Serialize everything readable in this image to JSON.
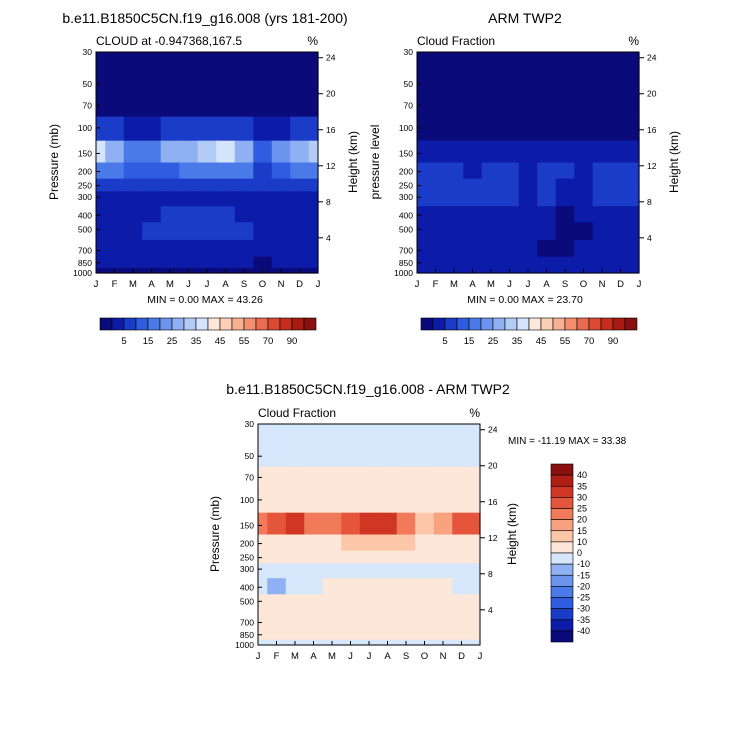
{
  "colors": {
    "diverging": [
      "#0a0a7a",
      "#0c1ca8",
      "#1a3cc8",
      "#2f5ce0",
      "#4a7ae8",
      "#6c94ee",
      "#8fb0f2",
      "#b2ccf6",
      "#d4e4fb",
      "#fde7d8",
      "#fccfb6",
      "#f8b092",
      "#f38e6e",
      "#ea6b4f",
      "#dc4a33",
      "#c72d1e",
      "#a91a12",
      "#8a1010"
    ],
    "page_background": "#ffffff"
  },
  "months": [
    "J",
    "F",
    "M",
    "A",
    "M",
    "J",
    "J",
    "A",
    "S",
    "O",
    "N",
    "D",
    "J"
  ],
  "pressure_ticks": [
    "30",
    "50",
    "70",
    "100",
    "150",
    "200",
    "250",
    "300",
    "400",
    "500",
    "700",
    "850",
    "1000"
  ],
  "height_ticks": [
    "24",
    "20",
    "16",
    "12",
    "8",
    "4"
  ],
  "panel1": {
    "title": "b.e11.B1850C5CN.f19_g16.008 (yrs 181-200)",
    "subtitle_left": "CLOUD at -0.947368,167.5",
    "subtitle_right": "%",
    "ylabel_left": "Pressure (mb)",
    "ylabel_right": "Height (km)",
    "stats": "MIN =   0.00 MAX =  43.26",
    "colorbar_labels": [
      "5",
      "15",
      "25",
      "35",
      "45",
      "55",
      "70",
      "90"
    ]
  },
  "panel2": {
    "title": "ARM TWP2",
    "subtitle_left": "Cloud Fraction",
    "subtitle_right": "%",
    "ylabel_left": "pressure level",
    "ylabel_right": "Height (km)",
    "stats": "MIN =   0.00 MAX =  23.70",
    "colorbar_labels": [
      "5",
      "15",
      "25",
      "35",
      "45",
      "55",
      "70",
      "90"
    ]
  },
  "panel3": {
    "title": "b.e11.B1850C5CN.f19_g16.008 - ARM TWP2",
    "subtitle_left": "Cloud Fraction",
    "subtitle_right": "%",
    "ylabel_left": "Pressure (mb)",
    "ylabel_right": "Height (km)",
    "stats": "MIN = -11.19 MAX =  33.38",
    "colorbar_labels": [
      "40",
      "35",
      "30",
      "25",
      "20",
      "15",
      "10",
      "0",
      "-10",
      "-15",
      "-20",
      "-25",
      "-30",
      "-35",
      "-40"
    ]
  },
  "chart_data": [
    {
      "type": "heatmap",
      "title": "b.e11.B1850C5CN.f19_g16.008 (yrs 181-200)",
      "subtitle": "CLOUD at -0.947368,167.5",
      "units": "%",
      "xlabel": "",
      "ylabel": "Pressure (mb)",
      "ylabel_right": "Height (km)",
      "x": [
        "J",
        "F",
        "M",
        "A",
        "M",
        "J",
        "J",
        "A",
        "S",
        "O",
        "N",
        "D",
        "J"
      ],
      "y": [
        30,
        50,
        70,
        100,
        150,
        200,
        250,
        300,
        400,
        500,
        700,
        850,
        1000
      ],
      "min": 0.0,
      "max": 43.26,
      "values": [
        [
          2,
          2,
          2,
          2,
          2,
          2,
          2,
          2,
          2,
          2,
          2,
          2,
          2
        ],
        [
          2,
          2,
          2,
          2,
          2,
          2,
          2,
          2,
          2,
          2,
          2,
          2,
          2
        ],
        [
          4,
          3,
          3,
          3,
          3,
          3,
          3,
          3,
          3,
          3,
          3,
          3,
          4
        ],
        [
          12,
          10,
          9,
          9,
          10,
          11,
          12,
          12,
          11,
          8,
          9,
          11,
          13
        ],
        [
          40,
          30,
          22,
          24,
          30,
          34,
          36,
          42,
          32,
          18,
          26,
          32,
          36
        ],
        [
          22,
          20,
          18,
          16,
          18,
          20,
          22,
          24,
          20,
          14,
          16,
          20,
          22
        ],
        [
          12,
          11,
          10,
          10,
          11,
          12,
          12,
          13,
          12,
          10,
          10,
          12,
          12
        ],
        [
          9,
          9,
          9,
          9,
          9,
          9,
          9,
          9,
          9,
          9,
          9,
          9,
          9
        ],
        [
          5,
          8,
          6,
          9,
          10,
          10,
          10,
          10,
          9,
          9,
          9,
          9,
          6
        ],
        [
          8,
          9,
          9,
          11,
          12,
          12,
          12,
          11,
          10,
          9,
          9,
          9,
          8
        ],
        [
          7,
          7,
          7,
          7,
          8,
          8,
          7,
          7,
          7,
          5,
          7,
          7,
          7
        ],
        [
          5,
          5,
          5,
          5,
          5,
          5,
          5,
          5,
          5,
          3,
          5,
          5,
          5
        ],
        [
          3,
          3,
          3,
          3,
          3,
          3,
          3,
          3,
          3,
          3,
          3,
          3,
          3
        ]
      ]
    },
    {
      "type": "heatmap",
      "title": "ARM TWP2",
      "subtitle": "Cloud Fraction",
      "units": "%",
      "xlabel": "",
      "ylabel": "pressure level",
      "ylabel_right": "Height (km)",
      "x": [
        "J",
        "F",
        "M",
        "A",
        "M",
        "J",
        "J",
        "A",
        "S",
        "O",
        "N",
        "D",
        "J"
      ],
      "y": [
        30,
        50,
        70,
        100,
        150,
        200,
        250,
        300,
        400,
        500,
        700,
        850,
        1000
      ],
      "min": 0.0,
      "max": 23.7,
      "values": [
        [
          1,
          1,
          1,
          1,
          1,
          1,
          1,
          1,
          1,
          1,
          1,
          1,
          1
        ],
        [
          1,
          1,
          1,
          1,
          1,
          1,
          1,
          1,
          1,
          1,
          1,
          1,
          1
        ],
        [
          1,
          1,
          1,
          1,
          1,
          1,
          1,
          1,
          1,
          1,
          1,
          1,
          1
        ],
        [
          3,
          3,
          2,
          2,
          2,
          2,
          2,
          2,
          2,
          2,
          2,
          3,
          4
        ],
        [
          7,
          7,
          6,
          6,
          6,
          6,
          5,
          6,
          6,
          6,
          7,
          8,
          9
        ],
        [
          11,
          14,
          10,
          9,
          11,
          10,
          9,
          11,
          10,
          9,
          11,
          12,
          13
        ],
        [
          10,
          13,
          11,
          10,
          10,
          10,
          9,
          10,
          9,
          9,
          10,
          11,
          12
        ],
        [
          10,
          12,
          11,
          10,
          10,
          10,
          9,
          10,
          9,
          9,
          10,
          10,
          11
        ],
        [
          8,
          9,
          9,
          8,
          8,
          8,
          7,
          6,
          4,
          5,
          7,
          8,
          9
        ],
        [
          7,
          7,
          7,
          7,
          7,
          7,
          6,
          5,
          4,
          4,
          6,
          7,
          8
        ],
        [
          6,
          5,
          5,
          5,
          5,
          5,
          5,
          4,
          4,
          5,
          6,
          6,
          7
        ],
        [
          6,
          6,
          6,
          6,
          6,
          6,
          6,
          6,
          6,
          6,
          6,
          6,
          6
        ],
        [
          5,
          5,
          5,
          5,
          5,
          5,
          5,
          5,
          5,
          5,
          5,
          5,
          5
        ]
      ]
    },
    {
      "type": "heatmap",
      "title": "b.e11.B1850C5CN.f19_g16.008 - ARM TWP2",
      "subtitle": "Cloud Fraction",
      "units": "%",
      "xlabel": "",
      "ylabel": "Pressure (mb)",
      "ylabel_right": "Height (km)",
      "x": [
        "J",
        "F",
        "M",
        "A",
        "M",
        "J",
        "J",
        "A",
        "S",
        "O",
        "N",
        "D",
        "J"
      ],
      "y": [
        30,
        50,
        70,
        100,
        150,
        200,
        250,
        300,
        400,
        500,
        700,
        850,
        1000
      ],
      "min": -11.19,
      "max": 33.38,
      "values": [
        [
          -2,
          -2,
          -2,
          -2,
          -2,
          -2,
          -2,
          -2,
          -2,
          -2,
          -2,
          -2,
          -2
        ],
        [
          -2,
          -2,
          -2,
          -2,
          -2,
          -2,
          -2,
          -2,
          -2,
          -2,
          -2,
          -2,
          -2
        ],
        [
          2,
          2,
          1,
          2,
          2,
          2,
          2,
          2,
          1,
          2,
          2,
          2,
          2
        ],
        [
          6,
          6,
          5,
          5,
          5,
          5,
          6,
          6,
          6,
          5,
          5,
          6,
          7
        ],
        [
          22,
          25,
          30,
          20,
          21,
          26,
          30,
          33,
          24,
          13,
          19,
          25,
          27
        ],
        [
          9,
          8,
          8,
          7,
          7,
          10,
          12,
          13,
          10,
          5,
          6,
          8,
          9
        ],
        [
          3,
          3,
          3,
          3,
          3,
          3,
          3,
          3,
          3,
          3,
          3,
          3,
          3
        ],
        [
          -2,
          -2,
          -2,
          -2,
          -2,
          -1,
          -1,
          -1,
          -1,
          -1,
          -2,
          -2,
          -2
        ],
        [
          -3,
          -11,
          -3,
          -2,
          2,
          2,
          2,
          2,
          2,
          2,
          2,
          -2,
          -3
        ],
        [
          1,
          2,
          2,
          3,
          4,
          4,
          5,
          5,
          4,
          4,
          3,
          2,
          1
        ],
        [
          1,
          2,
          2,
          2,
          3,
          3,
          4,
          6,
          3,
          2,
          2,
          2,
          1
        ],
        [
          1,
          1,
          1,
          1,
          1,
          1,
          1,
          1,
          1,
          1,
          1,
          1,
          1
        ],
        [
          -2,
          -2,
          -2,
          -2,
          -2,
          -2,
          -2,
          -2,
          -2,
          -2,
          -2,
          -2,
          -2
        ]
      ]
    }
  ]
}
